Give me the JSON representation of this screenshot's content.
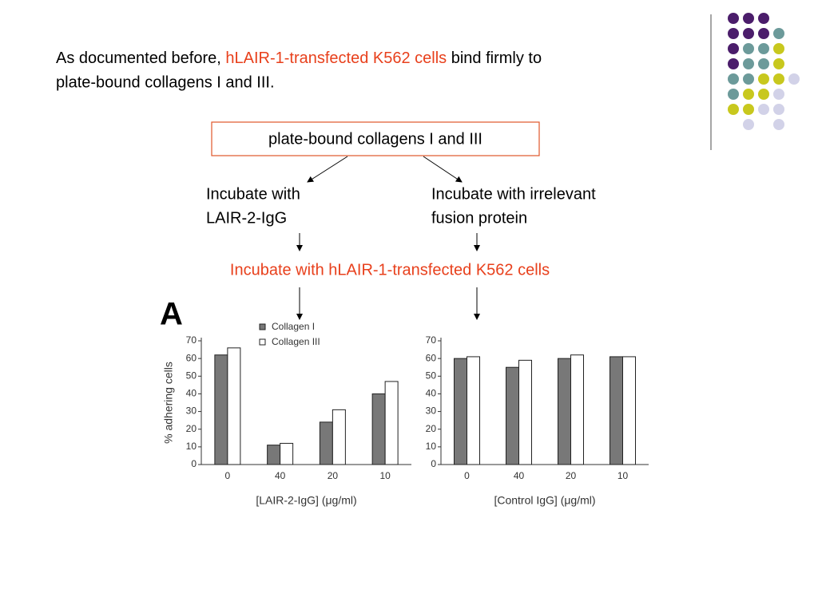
{
  "intro": {
    "part1": "As documented before,",
    "highlight": "hLAIR-1-transfected K562 cells",
    "part2": "bind firmly to",
    "line2": "plate-bound collagens I and III."
  },
  "flow": {
    "box": "plate-bound collagens I and III",
    "left_step": [
      "Incubate with",
      "LAIR-2-IgG"
    ],
    "right_step": [
      "Incubate with irrelevant",
      "fusion protein"
    ],
    "common_step": "Incubate with hLAIR-1-transfected K562 cells"
  },
  "panel_label": "A",
  "chart_data": [
    {
      "type": "bar",
      "y_label": "% adhering cells",
      "x_label": "[LAIR-2-IgG] (μg/ml)",
      "categories": [
        "0",
        "40",
        "20",
        "10"
      ],
      "series": [
        {
          "name": "Collagen I",
          "color": "#787878",
          "values": [
            62,
            11,
            24,
            40
          ]
        },
        {
          "name": "Collagen III",
          "color": "#ffffff",
          "values": [
            66,
            12,
            31,
            47
          ]
        }
      ],
      "ylim": [
        0,
        70
      ],
      "yticks": [
        0,
        10,
        20,
        30,
        40,
        50,
        60,
        70
      ]
    },
    {
      "type": "bar",
      "x_label": "[Control IgG] (μg/ml)",
      "categories": [
        "0",
        "40",
        "20",
        "10"
      ],
      "series": [
        {
          "color": "#787878",
          "values": [
            60,
            55,
            60,
            61
          ]
        },
        {
          "color": "#ffffff",
          "values": [
            61,
            59,
            62,
            61
          ]
        }
      ],
      "ylim": [
        0,
        70
      ],
      "yticks": [
        0,
        10,
        20,
        30,
        40,
        50,
        60,
        70
      ]
    }
  ]
}
